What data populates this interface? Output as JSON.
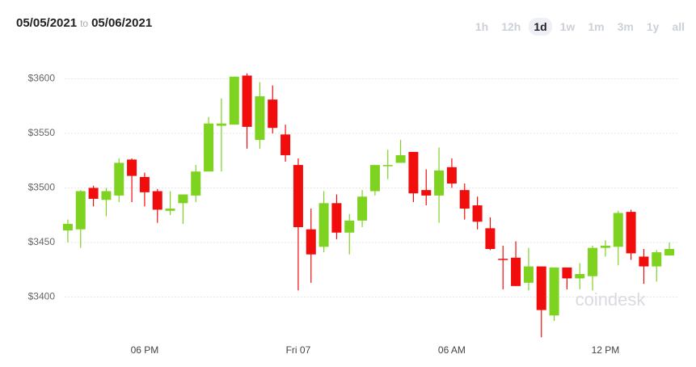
{
  "header": {
    "from": "05/05/2021",
    "separator": "to",
    "to": "05/06/2021",
    "ranges": [
      "1h",
      "12h",
      "1d",
      "1w",
      "1m",
      "3m",
      "1y",
      "all"
    ],
    "active_range": 2
  },
  "chart_data": {
    "type": "candlestick",
    "watermark": "coindesk",
    "categories": [
      null,
      null,
      null,
      null,
      null,
      null,
      "06 PM",
      null,
      null,
      null,
      null,
      null,
      null,
      null,
      null,
      null,
      null,
      null,
      "Fri 07",
      null,
      null,
      null,
      null,
      null,
      null,
      null,
      null,
      null,
      null,
      null,
      "06 AM",
      null,
      null,
      null,
      null,
      null,
      null,
      null,
      null,
      null,
      null,
      null,
      "12 PM",
      null,
      null,
      null,
      null,
      null
    ],
    "open": [
      3461,
      3462,
      3500,
      3489,
      3493,
      3526,
      3510,
      3497,
      3479,
      3486,
      3493,
      3515,
      3557,
      3558,
      3603,
      3544,
      3581,
      3549,
      3521,
      3462,
      3446,
      3486,
      3459,
      3470,
      3497,
      3520,
      3523,
      3533,
      3498,
      3493,
      3519,
      3498,
      3484,
      3463,
      3435,
      3436,
      3413,
      3428,
      3383,
      3427,
      3417,
      3419,
      3445,
      3446,
      3478,
      3437,
      3428,
      3438
    ],
    "high": [
      3471,
      3498,
      3502,
      3500,
      3527,
      3527,
      3514,
      3499,
      3497,
      3494,
      3521,
      3565,
      3582,
      3602,
      3605,
      3597,
      3594,
      3558,
      3527,
      3481,
      3497,
      3494,
      3476,
      3498,
      3521,
      3535,
      3544,
      3533,
      3517,
      3537,
      3527,
      3504,
      3492,
      3473,
      3447,
      3451,
      3445,
      3428,
      3427,
      3427,
      3431,
      3447,
      3452,
      3479,
      3480,
      3444,
      3443,
      3450
    ],
    "low": [
      3450,
      3445,
      3483,
      3474,
      3487,
      3487,
      3483,
      3468,
      3475,
      3467,
      3487,
      3515,
      3515,
      3558,
      3536,
      3536,
      3550,
      3524,
      3406,
      3413,
      3441,
      3453,
      3439,
      3464,
      3493,
      3508,
      3523,
      3487,
      3484,
      3468,
      3500,
      3471,
      3462,
      3443,
      3407,
      3410,
      3406,
      3363,
      3378,
      3407,
      3407,
      3406,
      3437,
      3429,
      3434,
      3412,
      3414,
      3439
    ],
    "close": [
      3467,
      3497,
      3490,
      3497,
      3523,
      3511,
      3496,
      3480,
      3481,
      3494,
      3515,
      3559,
      3559,
      3602,
      3556,
      3584,
      3555,
      3530,
      3464,
      3439,
      3486,
      3459,
      3470,
      3492,
      3521,
      3521,
      3530,
      3495,
      3493,
      3516,
      3504,
      3481,
      3469,
      3444,
      3434,
      3410,
      3428,
      3388,
      3427,
      3417,
      3421,
      3445,
      3447,
      3477,
      3440,
      3428,
      3441,
      3444
    ],
    "up_color": "#7ed321",
    "down_color": "#f20d0d",
    "ylim": [
      3358,
      3613
    ],
    "yticks": [
      {
        "value": 3400,
        "label": "$3400"
      },
      {
        "value": 3450,
        "label": "$3450"
      },
      {
        "value": 3500,
        "label": "$3500"
      },
      {
        "value": 3550,
        "label": "$3550"
      },
      {
        "value": 3600,
        "label": "$3600"
      }
    ],
    "grid": true
  }
}
